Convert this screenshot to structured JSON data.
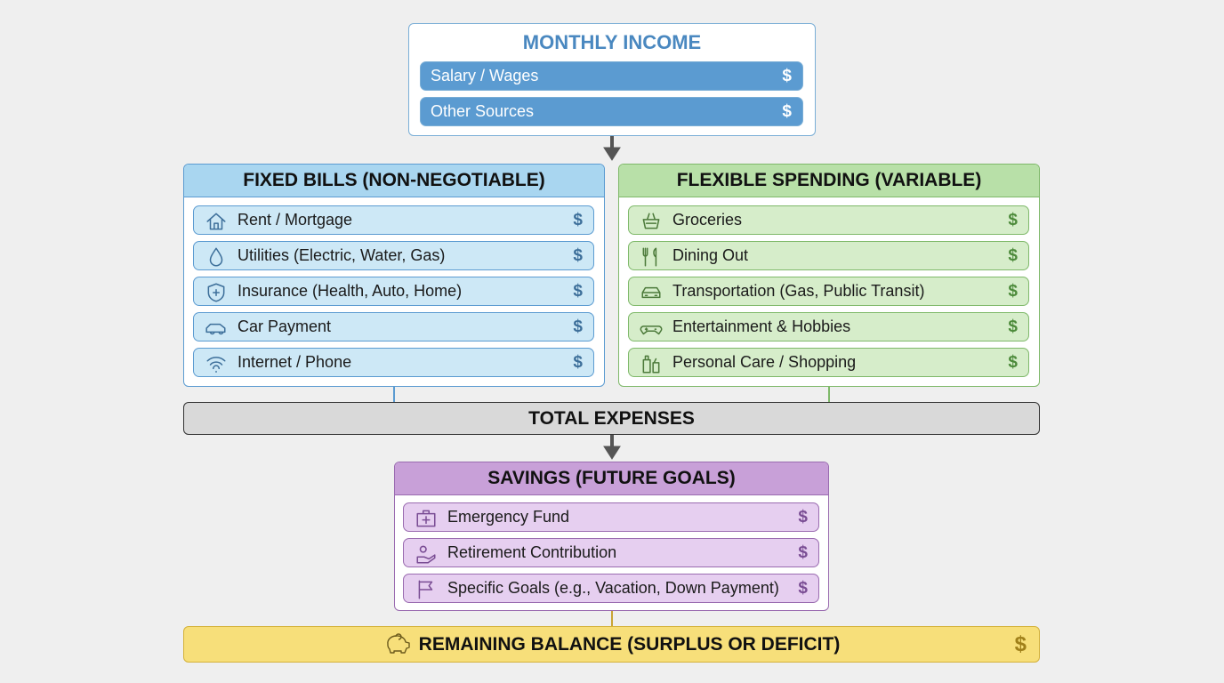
{
  "income": {
    "title": "MONTHLY INCOME",
    "rows": [
      {
        "label": "Salary / Wages",
        "symbol": "$"
      },
      {
        "label": "Other Sources",
        "symbol": "$"
      }
    ]
  },
  "fixed_bills": {
    "title": "FIXED BILLS (NON-NEGOTIABLE)",
    "rows": [
      {
        "label": "Rent / Mortgage",
        "symbol": "$"
      },
      {
        "label": "Utilities (Electric, Water, Gas)",
        "symbol": "$"
      },
      {
        "label": "Insurance (Health, Auto, Home)",
        "symbol": "$"
      },
      {
        "label": "Car Payment",
        "symbol": "$"
      },
      {
        "label": "Internet / Phone",
        "symbol": "$"
      }
    ]
  },
  "flexible_spending": {
    "title": "FLEXIBLE SPENDING (VARIABLE)",
    "rows": [
      {
        "label": "Groceries",
        "symbol": "$"
      },
      {
        "label": "Dining Out",
        "symbol": "$"
      },
      {
        "label": "Transportation (Gas, Public Transit)",
        "symbol": "$"
      },
      {
        "label": "Entertainment & Hobbies",
        "symbol": "$"
      },
      {
        "label": "Personal Care / Shopping",
        "symbol": "$"
      }
    ]
  },
  "total_expenses": {
    "label": "TOTAL EXPENSES"
  },
  "savings": {
    "title": "SAVINGS (FUTURE GOALS)",
    "rows": [
      {
        "label": "Emergency Fund",
        "symbol": "$"
      },
      {
        "label": "Retirement Contribution",
        "symbol": "$"
      },
      {
        "label": "Specific Goals (e.g., Vacation, Down Payment)",
        "symbol": "$"
      }
    ]
  },
  "remaining_balance": {
    "label": "REMAINING BALANCE (SURPLUS OR DEFICIT)",
    "symbol": "$"
  }
}
